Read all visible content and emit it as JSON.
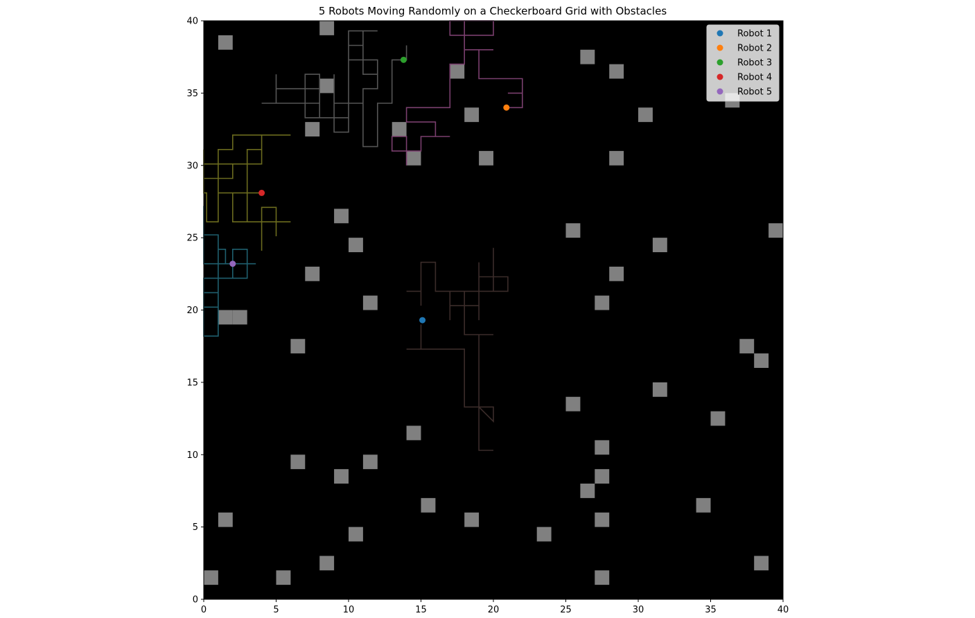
{
  "chart_data": {
    "type": "scatter",
    "title": "5 Robots Moving Randomly on a Checkerboard Grid with Obstacles",
    "xlabel": "",
    "ylabel": "",
    "xlim": [
      0,
      40
    ],
    "ylim": [
      0,
      40
    ],
    "x_ticks": [
      0,
      5,
      10,
      15,
      20,
      25,
      30,
      35,
      40
    ],
    "y_ticks": [
      0,
      5,
      10,
      15,
      20,
      25,
      30,
      35,
      40
    ],
    "grid": false,
    "background_color": "#000000",
    "legend_position": "top-right",
    "obstacle_color": "#808080",
    "obstacles": [
      [
        8,
        39
      ],
      [
        1,
        38
      ],
      [
        26,
        37
      ],
      [
        28,
        36
      ],
      [
        17,
        36
      ],
      [
        8,
        35
      ],
      [
        18,
        33
      ],
      [
        30,
        33
      ],
      [
        36,
        34
      ],
      [
        7,
        32
      ],
      [
        13,
        32
      ],
      [
        14,
        30
      ],
      [
        19,
        30
      ],
      [
        28,
        30
      ],
      [
        9,
        26
      ],
      [
        25,
        25
      ],
      [
        39,
        25
      ],
      [
        10,
        24
      ],
      [
        31,
        24
      ],
      [
        7,
        22
      ],
      [
        28,
        22
      ],
      [
        11,
        20
      ],
      [
        27,
        20
      ],
      [
        1,
        19
      ],
      [
        2,
        19
      ],
      [
        6,
        17
      ],
      [
        37,
        17
      ],
      [
        38,
        16
      ],
      [
        31,
        14
      ],
      [
        25,
        13
      ],
      [
        35,
        12
      ],
      [
        14,
        11
      ],
      [
        27,
        10
      ],
      [
        6,
        9
      ],
      [
        11,
        9
      ],
      [
        9,
        8
      ],
      [
        27,
        8
      ],
      [
        26,
        7
      ],
      [
        15,
        6
      ],
      [
        34,
        6
      ],
      [
        1,
        5
      ],
      [
        18,
        5
      ],
      [
        27,
        5
      ],
      [
        10,
        4
      ],
      [
        23,
        4
      ],
      [
        8,
        2
      ],
      [
        38,
        2
      ],
      [
        0,
        1
      ],
      [
        5,
        1
      ],
      [
        27,
        1
      ]
    ],
    "series": [
      {
        "name": "Robot 1",
        "color": "#1f77b4",
        "trail_color": "#3b2c2a",
        "position": [
          15.1,
          19.3
        ],
        "path": [
          [
            15,
            19
          ],
          [
            15,
            17.3
          ],
          [
            14,
            17.3
          ],
          [
            18,
            17.3
          ],
          [
            18,
            13.3
          ],
          [
            20,
            13.3
          ],
          [
            20,
            12.3
          ],
          [
            19,
            13.3
          ],
          [
            19,
            10.3
          ],
          [
            20,
            10.3
          ],
          [
            19,
            10.3
          ],
          [
            19,
            16.3
          ],
          [
            19,
            18.3
          ],
          [
            20,
            18.3
          ],
          [
            18,
            18.3
          ],
          [
            18,
            21.3
          ],
          [
            19,
            21.3
          ],
          [
            19,
            19.3
          ],
          [
            19,
            23.3
          ],
          [
            19,
            21.3
          ],
          [
            17,
            21.3
          ],
          [
            17,
            19.3
          ],
          [
            17,
            20.3
          ],
          [
            19,
            20.3
          ],
          [
            19,
            22.3
          ],
          [
            21,
            22.3
          ],
          [
            21,
            21.3
          ],
          [
            20,
            21.3
          ],
          [
            20,
            24.3
          ],
          [
            20,
            21.3
          ],
          [
            16,
            21.3
          ],
          [
            16,
            23.3
          ],
          [
            15,
            23.3
          ],
          [
            15,
            20.3
          ],
          [
            15,
            21.3
          ],
          [
            14,
            21.3
          ]
        ]
      },
      {
        "name": "Robot 2",
        "color": "#ff7f0e",
        "trail_color": "#7a3f6e",
        "position": [
          20.9,
          34.0
        ],
        "path": [
          [
            20.9,
            34
          ],
          [
            22,
            34
          ],
          [
            22,
            35
          ],
          [
            21,
            35
          ],
          [
            22,
            35
          ],
          [
            22,
            36
          ],
          [
            19,
            36
          ],
          [
            19,
            38
          ],
          [
            20,
            38
          ],
          [
            18,
            38
          ],
          [
            18,
            40
          ],
          [
            18,
            39
          ],
          [
            20,
            39
          ],
          [
            20,
            40
          ],
          [
            17,
            40
          ],
          [
            17,
            39
          ],
          [
            18,
            39
          ],
          [
            18,
            37
          ],
          [
            17,
            37
          ],
          [
            17,
            34
          ],
          [
            14,
            34
          ],
          [
            14,
            33
          ],
          [
            16,
            33
          ],
          [
            16,
            32
          ],
          [
            17,
            32
          ],
          [
            15,
            32
          ],
          [
            15,
            31
          ],
          [
            13,
            31
          ],
          [
            13,
            32
          ],
          [
            14,
            32
          ],
          [
            14,
            30
          ]
        ]
      },
      {
        "name": "Robot 3",
        "color": "#2ca02c",
        "trail_color": "#555555",
        "position": [
          13.8,
          37.3
        ],
        "path": [
          [
            13.8,
            37.3
          ],
          [
            14,
            37.3
          ],
          [
            14,
            38.3
          ],
          [
            14,
            37.3
          ],
          [
            13,
            37.3
          ],
          [
            13,
            34.3
          ],
          [
            12,
            34.3
          ],
          [
            12,
            31.3
          ],
          [
            11,
            31.3
          ],
          [
            11,
            35.3
          ],
          [
            12,
            35.3
          ],
          [
            12,
            36.3
          ],
          [
            11,
            36.3
          ],
          [
            11,
            39.3
          ],
          [
            12,
            39.3
          ],
          [
            10,
            39.3
          ],
          [
            10,
            37.3
          ],
          [
            12,
            37.3
          ],
          [
            12,
            36.3
          ],
          [
            11,
            36.3
          ],
          [
            11,
            38.3
          ],
          [
            10,
            38.3
          ],
          [
            10,
            33.3
          ],
          [
            9,
            33.3
          ],
          [
            9,
            32.3
          ],
          [
            10,
            32.3
          ],
          [
            10,
            34.3
          ],
          [
            11,
            34.3
          ],
          [
            11,
            31.3
          ],
          [
            11,
            34.3
          ],
          [
            9,
            34.3
          ],
          [
            9,
            36.3
          ],
          [
            9,
            33.3
          ],
          [
            7,
            33.3
          ],
          [
            7,
            36.3
          ],
          [
            8,
            36.3
          ],
          [
            8,
            34.3
          ],
          [
            4,
            34.3
          ],
          [
            5,
            34.3
          ],
          [
            5,
            36.3
          ],
          [
            5,
            35.3
          ],
          [
            8,
            35.3
          ],
          [
            8,
            33.3
          ]
        ]
      },
      {
        "name": "Robot 4",
        "color": "#d62728",
        "trail_color": "#6b6b1e",
        "position": [
          4.0,
          28.1
        ],
        "path": [
          [
            4,
            28.1
          ],
          [
            3,
            28.1
          ],
          [
            3,
            26.1
          ],
          [
            2,
            26.1
          ],
          [
            2,
            28.1
          ],
          [
            1,
            28.1
          ],
          [
            1,
            26.1
          ],
          [
            0.2,
            26.1
          ],
          [
            0.2,
            28.1
          ],
          [
            0,
            28.1
          ],
          [
            0,
            31.1
          ],
          [
            0,
            29.1
          ],
          [
            2,
            29.1
          ],
          [
            2,
            30.1
          ],
          [
            0,
            30.1
          ],
          [
            4,
            30.1
          ],
          [
            4,
            32.1
          ],
          [
            2,
            32.1
          ],
          [
            2,
            31.1
          ],
          [
            1,
            31.1
          ],
          [
            1,
            28.1
          ],
          [
            3,
            28.1
          ],
          [
            3,
            29.1
          ],
          [
            3,
            26.1
          ],
          [
            6,
            26.1
          ],
          [
            5,
            26.1
          ],
          [
            5,
            25.1
          ],
          [
            5,
            27.1
          ],
          [
            4,
            27.1
          ],
          [
            4,
            24.1
          ],
          [
            4,
            26.1
          ],
          [
            3,
            26.1
          ],
          [
            3,
            31.1
          ],
          [
            4,
            31.1
          ],
          [
            4,
            32.1
          ],
          [
            6,
            32.1
          ]
        ]
      },
      {
        "name": "Robot 5",
        "color": "#9467bd",
        "trail_color": "#1f5f6e",
        "position": [
          2.0,
          23.2
        ],
        "path": [
          [
            2,
            23.2
          ],
          [
            2,
            22.2
          ],
          [
            2,
            24.2
          ],
          [
            3,
            24.2
          ],
          [
            3,
            22.2
          ],
          [
            1,
            22.2
          ],
          [
            1,
            25.2
          ],
          [
            0,
            25.2
          ],
          [
            0,
            23.2
          ],
          [
            3.6,
            23.2
          ],
          [
            1.5,
            23.2
          ],
          [
            1.5,
            24.2
          ],
          [
            1,
            24.2
          ],
          [
            1,
            19.2
          ],
          [
            1,
            18.2
          ],
          [
            0,
            18.2
          ],
          [
            0,
            22.2
          ],
          [
            1,
            22.2
          ],
          [
            1,
            21.2
          ],
          [
            0,
            21.2
          ],
          [
            0,
            20.2
          ],
          [
            1,
            20.2
          ],
          [
            1,
            23.2
          ],
          [
            0,
            23.2
          ],
          [
            0,
            27.2
          ]
        ]
      }
    ]
  }
}
